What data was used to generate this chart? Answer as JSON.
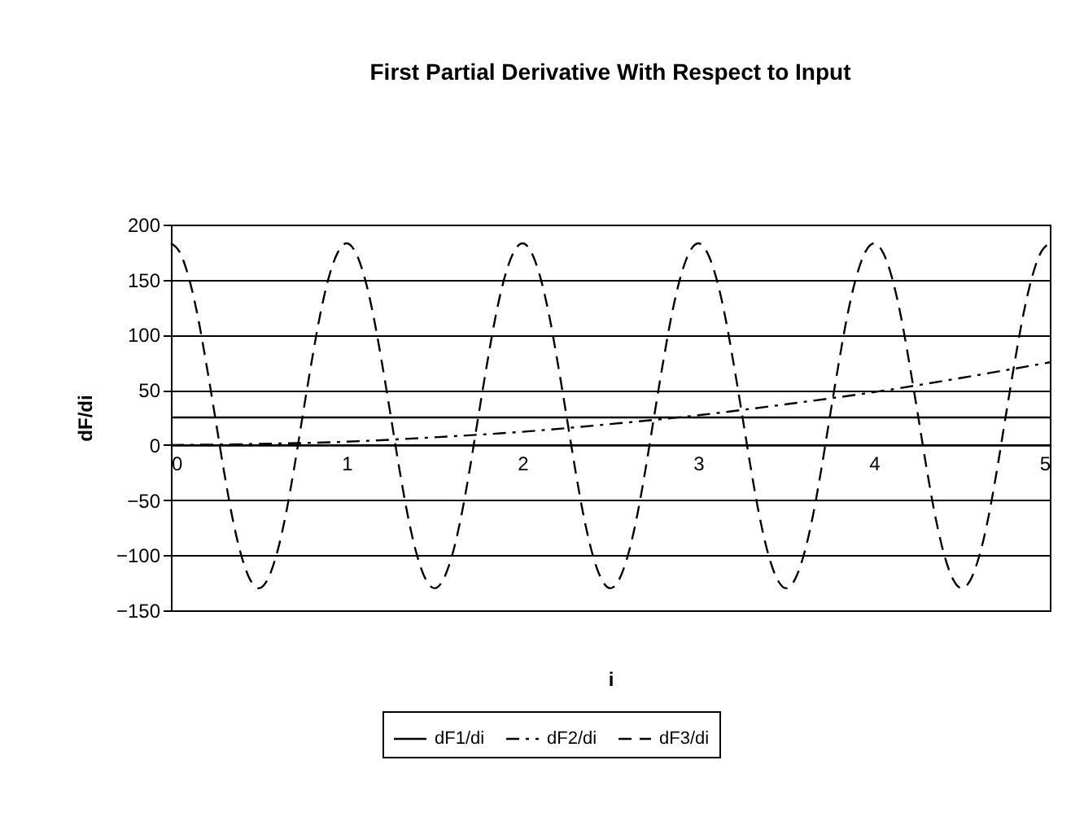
{
  "chart_data": {
    "type": "line",
    "title": "First Partial Derivative With Respect to Input",
    "xlabel": "i",
    "ylabel": "dF/di",
    "xlim": [
      0,
      5
    ],
    "xticks": [
      0,
      1,
      2,
      3,
      4,
      5
    ],
    "ylim": [
      -150,
      200
    ],
    "yticks": [
      -150,
      -100,
      -50,
      0,
      50,
      100,
      150,
      200
    ],
    "grid": "y",
    "legend": "bottom",
    "marker": "none",
    "series": [
      {
        "name": "dF1/di",
        "color": "#000000",
        "line_style": "solid",
        "x": [
          0,
          5
        ],
        "values": [
          25,
          25
        ]
      },
      {
        "name": "dF2/di",
        "color": "#000000",
        "line_style": "dashdot",
        "x": [
          0,
          0.5,
          1,
          1.5,
          2,
          2.5,
          3,
          3.5,
          4,
          4.5,
          5
        ],
        "values": [
          0,
          1,
          3,
          7,
          12,
          19,
          27,
          37,
          48,
          61,
          75
        ]
      },
      {
        "name": "dF3/di",
        "color": "#000000",
        "line_style": "dashed",
        "x": [
          0,
          0.05,
          0.1,
          0.15,
          0.2,
          0.25,
          0.3,
          0.35,
          0.4,
          0.45,
          0.5,
          0.55,
          0.6,
          0.65,
          0.7,
          0.75,
          0.8,
          0.85,
          0.9,
          0.95,
          1,
          1.05,
          1.1,
          1.15,
          1.2,
          1.25,
          1.3,
          1.35,
          1.4,
          1.45,
          1.5,
          1.55,
          1.6,
          1.65,
          1.7,
          1.75,
          1.8,
          1.85,
          1.9,
          1.95,
          2,
          2.05,
          2.1,
          2.15,
          2.2,
          2.25,
          2.3,
          2.35,
          2.4,
          2.45,
          2.5,
          2.55,
          2.6,
          2.65,
          2.7,
          2.75,
          2.8,
          2.85,
          2.9,
          2.95,
          3,
          3.05,
          3.1,
          3.15,
          3.2,
          3.25,
          3.3,
          3.35,
          3.4,
          3.45,
          3.5,
          3.55,
          3.6,
          3.65,
          3.7,
          3.75,
          3.8,
          3.85,
          3.9,
          3.95,
          4,
          4.05,
          4.1,
          4.15,
          4.2,
          4.25,
          4.3,
          4.35,
          4.4,
          4.45,
          4.5,
          4.55,
          4.6,
          4.65,
          4.7,
          4.75,
          4.8,
          4.85,
          4.9,
          4.95,
          5
        ],
        "values": [
          183,
          175,
          153,
          119,
          75,
          27,
          -22,
          -66,
          -100,
          -122,
          -130,
          -122,
          -100,
          -66,
          -22,
          27,
          75,
          119,
          153,
          175,
          183,
          175,
          153,
          119,
          75,
          27,
          -22,
          -66,
          -100,
          -122,
          -130,
          -122,
          -100,
          -66,
          -22,
          27,
          75,
          119,
          153,
          175,
          183,
          175,
          153,
          119,
          75,
          27,
          -22,
          -66,
          -100,
          -122,
          -130,
          -122,
          -100,
          -66,
          -22,
          27,
          75,
          119,
          153,
          175,
          183,
          175,
          153,
          119,
          75,
          27,
          -22,
          -66,
          -100,
          -122,
          -130,
          -122,
          -100,
          -66,
          -22,
          27,
          75,
          119,
          153,
          175,
          183,
          175,
          153,
          119,
          75,
          27,
          -22,
          -66,
          -100,
          -122,
          -130,
          -122,
          -100,
          -66,
          -22,
          27,
          75,
          119,
          153,
          175,
          183
        ]
      }
    ]
  }
}
